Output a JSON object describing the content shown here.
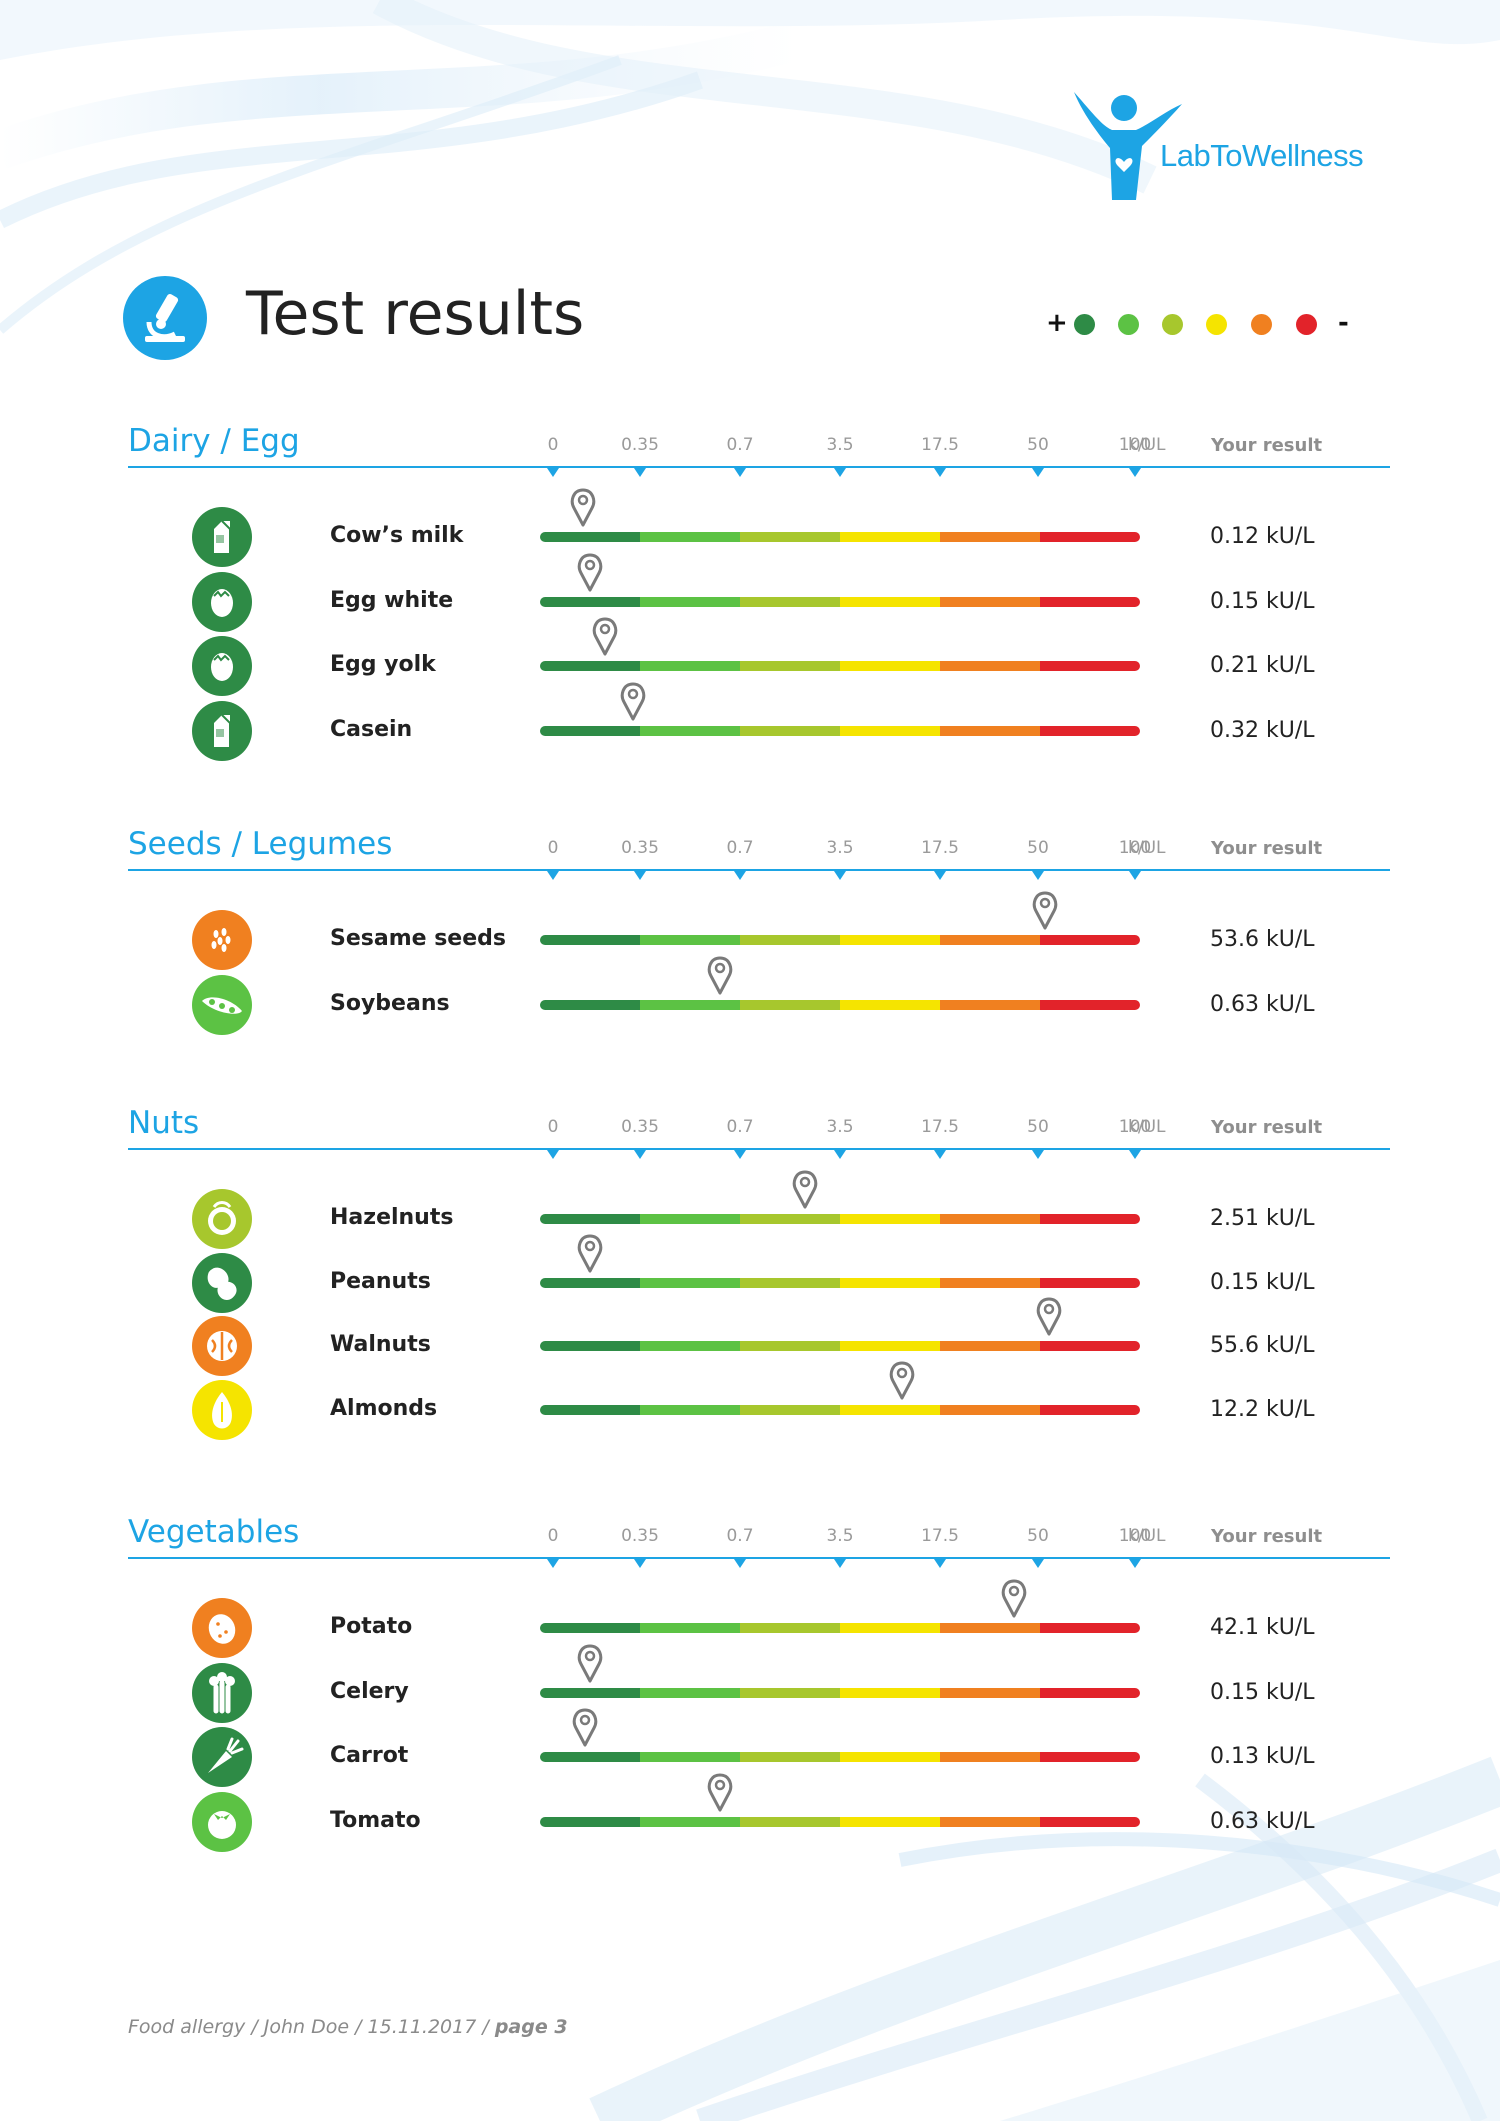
{
  "brand": {
    "logo_text": "LabToWellness"
  },
  "header": {
    "title": "Test results"
  },
  "scale_legend": {
    "plus": "+",
    "minus": "-",
    "colors": [
      "#2e8b46",
      "#5cc244",
      "#a7c72d",
      "#f5e400",
      "#f08020",
      "#e2232a"
    ]
  },
  "scale": {
    "ticks": [
      "0",
      "0.35",
      "0.7",
      "3.5",
      "17.5",
      "50",
      "100"
    ],
    "unit": "k/UL",
    "result_header": "Your result",
    "segment_colors": [
      "#2e8b46",
      "#5cc244",
      "#a7c72d",
      "#f5e400",
      "#f08020",
      "#e2232a"
    ]
  },
  "sections": [
    {
      "title": "Dairy / Egg",
      "items": [
        {
          "name": "Cow’s milk",
          "value": 0.12,
          "result": "0.12 kU/L",
          "icon": "milk-carton-icon",
          "color": "#2e8b46"
        },
        {
          "name": "Egg white",
          "value": 0.15,
          "result": "0.15 kU/L",
          "icon": "egg-icon",
          "color": "#2e8b46"
        },
        {
          "name": "Egg yolk",
          "value": 0.21,
          "result": "0.21 kU/L",
          "icon": "egg-icon",
          "color": "#2e8b46"
        },
        {
          "name": "Casein",
          "value": 0.32,
          "result": "0.32 kU/L",
          "icon": "milk-carton-icon",
          "color": "#2e8b46"
        }
      ]
    },
    {
      "title": "Seeds / Legumes",
      "items": [
        {
          "name": "Sesame seeds",
          "value": 53.6,
          "result": "53.6 kU/L",
          "icon": "sesame-icon",
          "color": "#f08020"
        },
        {
          "name": "Soybeans",
          "value": 0.63,
          "result": "0.63 kU/L",
          "icon": "soybean-icon",
          "color": "#5cc244"
        }
      ]
    },
    {
      "title": "Nuts",
      "items": [
        {
          "name": "Hazelnuts",
          "value": 2.51,
          "result": "2.51 kU/L",
          "icon": "hazelnut-icon",
          "color": "#a7c72d"
        },
        {
          "name": "Peanuts",
          "value": 0.15,
          "result": "0.15 kU/L",
          "icon": "peanut-icon",
          "color": "#2e8b46"
        },
        {
          "name": "Walnuts",
          "value": 55.6,
          "result": "55.6 kU/L",
          "icon": "walnut-icon",
          "color": "#f08020"
        },
        {
          "name": "Almonds",
          "value": 12.2,
          "result": "12.2 kU/L",
          "icon": "almond-icon",
          "color": "#f5e400"
        }
      ]
    },
    {
      "title": "Vegetables",
      "items": [
        {
          "name": "Potato",
          "value": 42.1,
          "result": "42.1 kU/L",
          "icon": "potato-icon",
          "color": "#f08020"
        },
        {
          "name": "Celery",
          "value": 0.15,
          "result": "0.15 kU/L",
          "icon": "celery-icon",
          "color": "#2e8b46"
        },
        {
          "name": "Carrot",
          "value": 0.13,
          "result": "0.13 kU/L",
          "icon": "carrot-icon",
          "color": "#2e8b46"
        },
        {
          "name": "Tomato",
          "value": 0.63,
          "result": "0.63 kU/L",
          "icon": "tomato-icon",
          "color": "#5cc244"
        }
      ]
    }
  ],
  "footer": {
    "prefix": "Food allergy / John Doe / 15.11.2017 / ",
    "page": "page 3"
  }
}
